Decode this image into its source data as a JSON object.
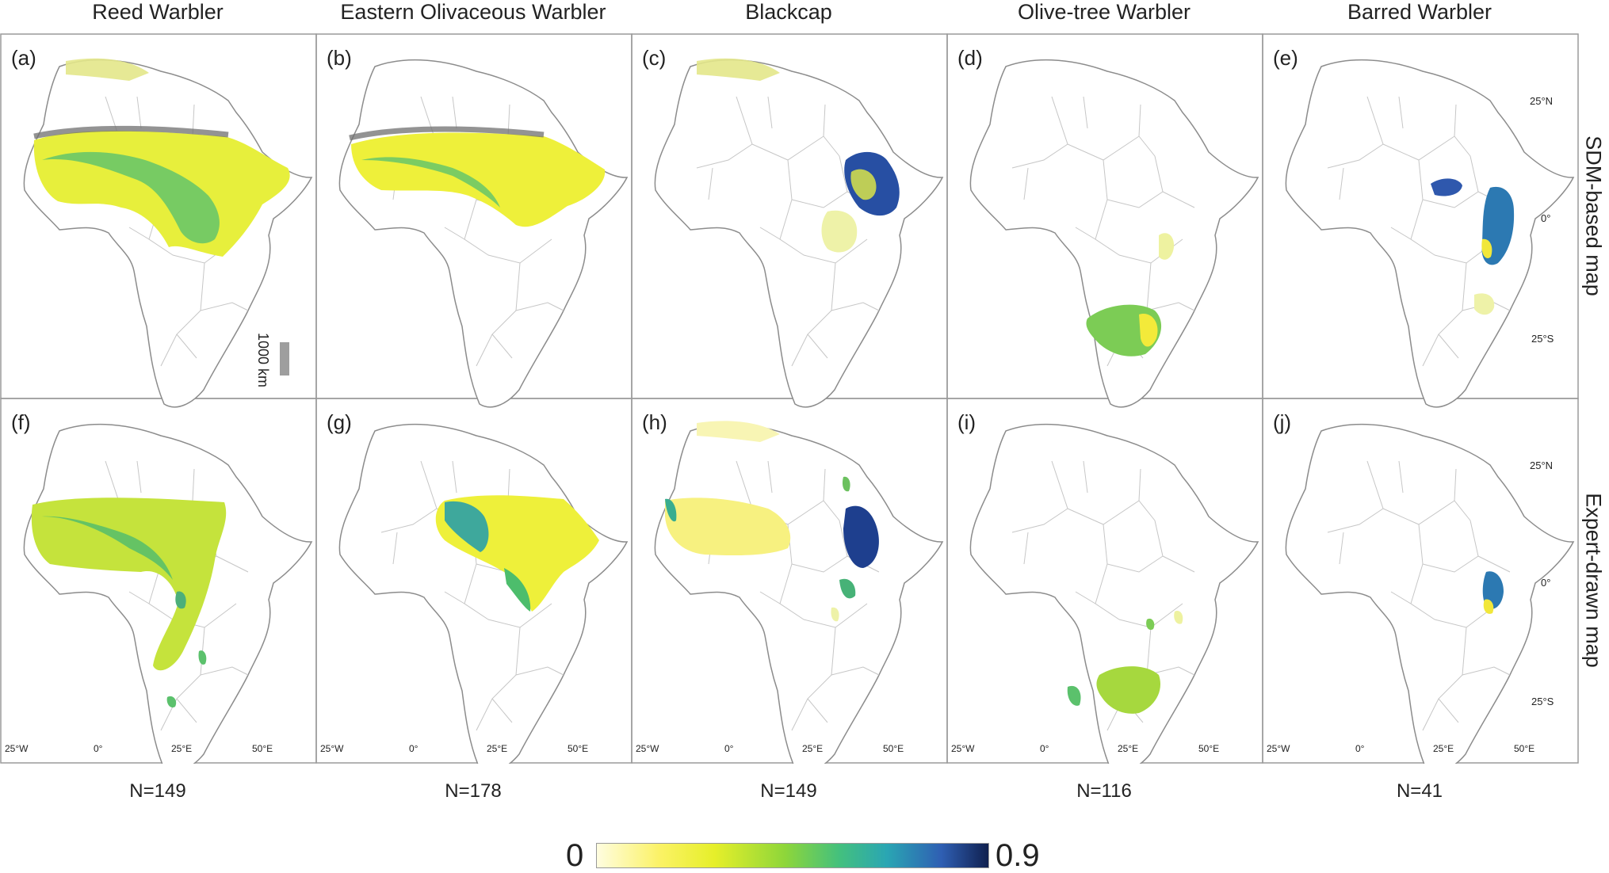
{
  "species": [
    "Reed Warbler",
    "Eastern Olivaceous Warbler",
    "Blackcap",
    "Olive-tree Warbler",
    "Barred Warbler"
  ],
  "row_labels": {
    "top": "SDM-based map",
    "bottom": "Expert-drawn map"
  },
  "panel_labels": [
    [
      "(a)",
      "(b)",
      "(c)",
      "(d)",
      "(e)"
    ],
    [
      "(f)",
      "(g)",
      "(h)",
      "(i)",
      "(j)"
    ]
  ],
  "sample_sizes": [
    "N=149",
    "N=178",
    "N=149",
    "N=116",
    "N=41"
  ],
  "lat_ticks": [
    "25°N",
    "0°",
    "25°S"
  ],
  "lon_ticks": [
    "25°W",
    "0°",
    "25°E",
    "50°E"
  ],
  "scale_bar": "1000 km",
  "legend": {
    "min": "0",
    "max": "0.9",
    "colors": [
      "#fffde0",
      "#fbf266",
      "#e6ef2a",
      "#8ed63a",
      "#43c07e",
      "#2aa6b3",
      "#2f5fb3",
      "#10204f"
    ]
  }
}
